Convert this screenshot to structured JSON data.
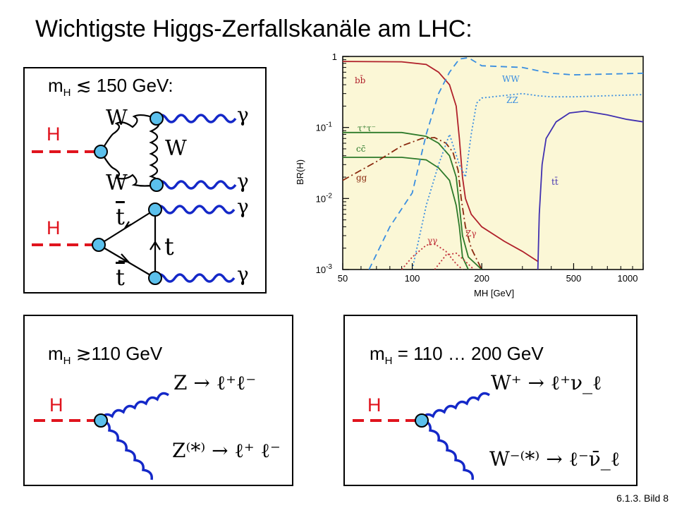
{
  "title": "Wichtigste Higgs-Zerfallskanäle am LHC:",
  "footer": "6.1.3. Bild 8",
  "panel1": {
    "mass_label": "m",
    "mass_sub": "H",
    "mass_value": " ≲ 150 GeV:",
    "h_label_top": "H",
    "h_label_bottom": "H",
    "w_labels": [
      "W",
      "W",
      "W"
    ],
    "t_labels": [
      "t",
      "t",
      "t"
    ],
    "gamma_labels": [
      "γ",
      "γ",
      "γ",
      "γ"
    ]
  },
  "panel2": {
    "mass_label": "m",
    "mass_sub": "H",
    "mass_value": " ≳110 GeV",
    "h_label": "H",
    "decay_upper": "Z → ℓ⁺ℓ⁻",
    "decay_lower": "Z⁽*⁾ → ℓ⁺ ℓ⁻"
  },
  "panel3": {
    "mass_label": "m",
    "mass_sub": "H",
    "mass_value": " = 110 … 200 GeV",
    "h_label": "H",
    "decay_upper": "W⁺ → ℓ⁺ν_ℓ",
    "decay_lower": "W⁻⁽*⁾ → ℓ⁻ν̄_ℓ"
  },
  "chart_data": {
    "type": "line",
    "xlabel": "M_H [GeV]",
    "ylabel": "BR(H)",
    "xscale": "log",
    "yscale": "log",
    "xlim": [
      50,
      1000
    ],
    "ylim": [
      0.001,
      1
    ],
    "xticks": [
      "50",
      "100",
      "200",
      "500",
      "1000"
    ],
    "yticks": [
      "1",
      "10^-1",
      "10^-2",
      "10^-3"
    ],
    "series_labels": {
      "bb": "bb̄",
      "tautau": "τ⁺τ⁻",
      "cc": "cc̄",
      "gg": "gg",
      "ww": "WW",
      "zz": "ZZ",
      "tt": "tt̄",
      "gamgam": "γγ",
      "zgam": "Zγ"
    },
    "colors": {
      "bb": "#b0202a",
      "tautau": "#2d7a2a",
      "cc": "#2d7a2a",
      "gg": "#8a2a10",
      "ww": "#3a8ee0",
      "zz": "#3a8ee0",
      "tt": "#4030b0",
      "gamgam": "#c0303a",
      "zgam": "#c0303a",
      "bg": "#fbf7d6"
    },
    "series": [
      {
        "key": "bb",
        "style": "solid",
        "points": [
          [
            50,
            0.85
          ],
          [
            90,
            0.84
          ],
          [
            115,
            0.77
          ],
          [
            130,
            0.6
          ],
          [
            145,
            0.4
          ],
          [
            155,
            0.2
          ],
          [
            160,
            0.07
          ],
          [
            165,
            0.02
          ],
          [
            170,
            0.01
          ],
          [
            180,
            0.006
          ],
          [
            200,
            0.004
          ],
          [
            250,
            0.0025
          ],
          [
            300,
            0.0018
          ],
          [
            350,
            0.0013
          ]
        ]
      },
      {
        "key": "tautau",
        "style": "solid",
        "points": [
          [
            50,
            0.085
          ],
          [
            90,
            0.085
          ],
          [
            115,
            0.075
          ],
          [
            130,
            0.06
          ],
          [
            145,
            0.04
          ],
          [
            155,
            0.02
          ],
          [
            160,
            0.008
          ],
          [
            165,
            0.003
          ],
          [
            175,
            0.0015
          ],
          [
            200,
            0.001
          ]
        ]
      },
      {
        "key": "cc",
        "style": "solid",
        "points": [
          [
            50,
            0.038
          ],
          [
            90,
            0.038
          ],
          [
            115,
            0.035
          ],
          [
            130,
            0.027
          ],
          [
            145,
            0.018
          ],
          [
            155,
            0.008
          ],
          [
            160,
            0.004
          ],
          [
            165,
            0.0015
          ],
          [
            175,
            0.001
          ]
        ]
      },
      {
        "key": "gg",
        "style": "dashdot",
        "points": [
          [
            50,
            0.018
          ],
          [
            70,
            0.033
          ],
          [
            90,
            0.055
          ],
          [
            110,
            0.07
          ],
          [
            125,
            0.072
          ],
          [
            140,
            0.06
          ],
          [
            150,
            0.045
          ],
          [
            158,
            0.025
          ],
          [
            163,
            0.01
          ],
          [
            170,
            0.004
          ],
          [
            180,
            0.002
          ],
          [
            200,
            0.001
          ]
        ]
      },
      {
        "key": "ww",
        "style": "dashed",
        "points": [
          [
            65,
            0.001
          ],
          [
            80,
            0.004
          ],
          [
            100,
            0.012
          ],
          [
            115,
            0.08
          ],
          [
            130,
            0.3
          ],
          [
            145,
            0.6
          ],
          [
            160,
            0.92
          ],
          [
            175,
            0.96
          ],
          [
            200,
            0.74
          ],
          [
            300,
            0.7
          ],
          [
            350,
            0.63
          ],
          [
            400,
            0.58
          ],
          [
            500,
            0.55
          ],
          [
            1000,
            0.58
          ]
        ]
      },
      {
        "key": "zz",
        "style": "dotted",
        "points": [
          [
            100,
            0.001
          ],
          [
            115,
            0.008
          ],
          [
            130,
            0.03
          ],
          [
            145,
            0.08
          ],
          [
            160,
            0.03
          ],
          [
            170,
            0.02
          ],
          [
            180,
            0.08
          ],
          [
            190,
            0.22
          ],
          [
            200,
            0.26
          ],
          [
            300,
            0.3
          ],
          [
            350,
            0.28
          ],
          [
            400,
            0.27
          ],
          [
            500,
            0.27
          ],
          [
            1000,
            0.29
          ]
        ]
      },
      {
        "key": "tt",
        "style": "solid",
        "points": [
          [
            350,
            0.001
          ],
          [
            355,
            0.006
          ],
          [
            365,
            0.03
          ],
          [
            380,
            0.07
          ],
          [
            420,
            0.12
          ],
          [
            480,
            0.16
          ],
          [
            560,
            0.17
          ],
          [
            700,
            0.15
          ],
          [
            850,
            0.13
          ],
          [
            1000,
            0.12
          ]
        ]
      },
      {
        "key": "gamgam",
        "style": "dotted",
        "points": [
          [
            90,
            0.001
          ],
          [
            100,
            0.0015
          ],
          [
            115,
            0.0022
          ],
          [
            125,
            0.0023
          ],
          [
            140,
            0.0018
          ],
          [
            155,
            0.0012
          ],
          [
            165,
            0.001
          ]
        ]
      },
      {
        "key": "zgam",
        "style": "dotted",
        "points": [
          [
            125,
            0.001
          ],
          [
            140,
            0.0016
          ],
          [
            155,
            0.0017
          ],
          [
            170,
            0.0013
          ],
          [
            185,
            0.001
          ]
        ]
      }
    ]
  }
}
